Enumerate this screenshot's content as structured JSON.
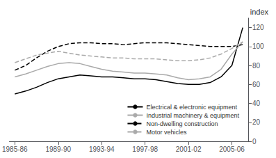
{
  "chart_data": {
    "type": "line",
    "title": "index",
    "categories": [
      "1985-86",
      null,
      null,
      null,
      "1989-90",
      null,
      null,
      null,
      "1993-94",
      null,
      null,
      null,
      "1997-98",
      null,
      null,
      null,
      "2001-02",
      null,
      null,
      null,
      "2005-06",
      null
    ],
    "series": [
      {
        "name": "Electrical & electronic equipment",
        "color": "#000000",
        "line_style": "solid",
        "values": [
          50,
          53,
          57,
          62,
          66,
          68,
          70,
          69,
          68,
          68,
          67,
          66,
          66,
          65,
          63,
          61,
          60,
          60,
          62,
          68,
          80,
          120
        ]
      },
      {
        "name": "Industrial machinery & equipment",
        "color": "#aaaaaa",
        "line_style": "solid",
        "values": [
          68,
          71,
          75,
          79,
          82,
          83,
          82,
          79,
          76,
          74,
          73,
          72,
          72,
          71,
          70,
          67,
          65,
          66,
          68,
          76,
          92,
          105
        ]
      },
      {
        "name": "Non-dwelling construction",
        "color": "#000000",
        "line_style": "dashed",
        "values": [
          75,
          80,
          88,
          95,
          100,
          103,
          104,
          104,
          103,
          103,
          102,
          103,
          104,
          104,
          104,
          103,
          102,
          101,
          100,
          100,
          100,
          102
        ]
      },
      {
        "name": "Motor vehicles",
        "color": "#aaaaaa",
        "line_style": "dashed",
        "values": [
          83,
          87,
          91,
          93,
          95,
          93,
          91,
          90,
          89,
          88,
          88,
          87,
          87,
          87,
          86,
          85,
          85,
          86,
          88,
          92,
          98,
          105
        ]
      }
    ],
    "ylim": [
      0,
      130
    ],
    "yticks": [
      0,
      20,
      40,
      60,
      80,
      100,
      120
    ],
    "grid": false,
    "legend": "lower right"
  }
}
